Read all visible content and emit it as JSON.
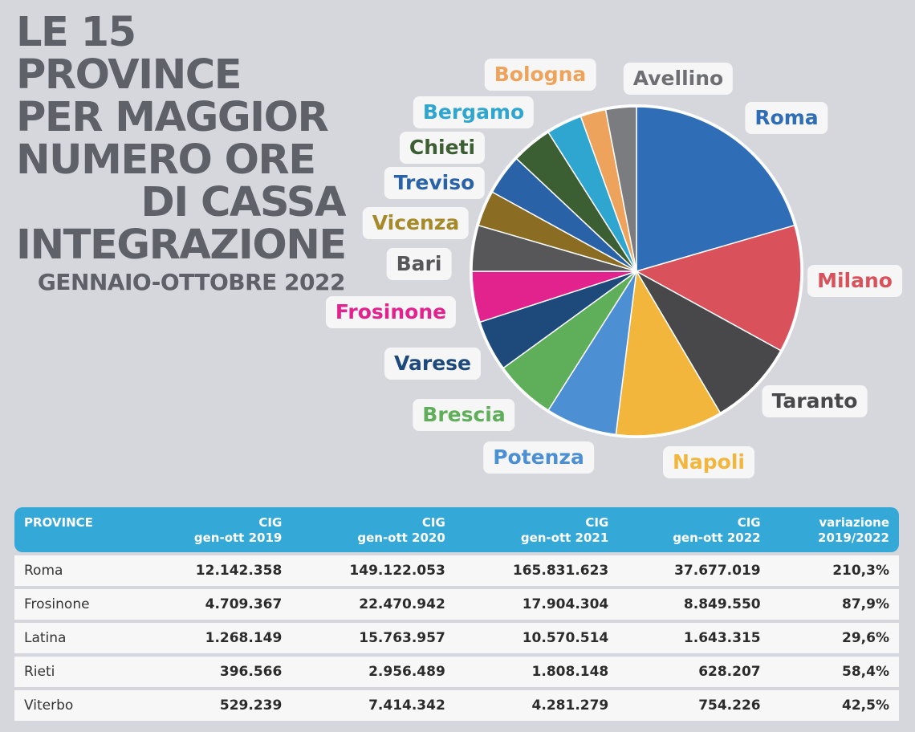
{
  "title": {
    "line1": "LE 15 PROVINCE",
    "line2": "PER MAGGIOR",
    "line3": "NUMERO ORE",
    "line4": "DI CASSA",
    "line5": "INTEGRAZIONE",
    "line6": "GENNAIO-OTTOBRE 2022"
  },
  "chart_data": {
    "type": "pie",
    "title": "LE 15 PROVINCE PER MAGGIOR NUMERO ORE DI CASSA INTEGRAZIONE GENNAIO-OTTOBRE 2022",
    "slices": [
      {
        "label": "Roma",
        "value": 20.5,
        "color": "#2f6db6"
      },
      {
        "label": "Milano",
        "value": 12.5,
        "color": "#d9525b"
      },
      {
        "label": "Taranto",
        "value": 8.5,
        "color": "#48484b"
      },
      {
        "label": "Napoli",
        "value": 10.5,
        "color": "#f2b63d"
      },
      {
        "label": "Potenza",
        "value": 7.0,
        "color": "#4d8fd3"
      },
      {
        "label": "Brescia",
        "value": 6.0,
        "color": "#5fae5a"
      },
      {
        "label": "Varese",
        "value": 5.0,
        "color": "#1d4a7a"
      },
      {
        "label": "Frosinone",
        "value": 5.0,
        "color": "#e3238d"
      },
      {
        "label": "Bari",
        "value": 4.5,
        "color": "#57575a"
      },
      {
        "label": "Vicenza",
        "value": 3.5,
        "color": "#8a6d22"
      },
      {
        "label": "Treviso",
        "value": 4.0,
        "color": "#2a62a8"
      },
      {
        "label": "Chieti",
        "value": 4.0,
        "color": "#3c5e33"
      },
      {
        "label": "Bergamo",
        "value": 3.5,
        "color": "#2fa6cf"
      },
      {
        "label": "Bologna",
        "value": 2.5,
        "color": "#eea35c"
      },
      {
        "label": "Avellino",
        "value": 3.0,
        "color": "#7b7c80"
      }
    ],
    "label_colors": {
      "Roma": "#2f6db6",
      "Milano": "#d9525b",
      "Taranto": "#48484b",
      "Napoli": "#f2b63d",
      "Potenza": "#4d8fd3",
      "Brescia": "#5fae5a",
      "Varese": "#1d4a7a",
      "Frosinone": "#e3238d",
      "Bari": "#57575a",
      "Vicenza": "#a68a2a",
      "Treviso": "#2a62a8",
      "Chieti": "#3c5e33",
      "Bergamo": "#2fa6cf",
      "Bologna": "#eea35c",
      "Avellino": "#6e6f73"
    }
  },
  "table": {
    "headers": [
      {
        "line1": "PROVINCE",
        "line2": ""
      },
      {
        "line1": "CIG",
        "line2": "gen-ott 2019"
      },
      {
        "line1": "CIG",
        "line2": "gen-ott 2020"
      },
      {
        "line1": "CIG",
        "line2": "gen-ott 2021"
      },
      {
        "line1": "CIG",
        "line2": "gen-ott 2022"
      },
      {
        "line1": "variazione",
        "line2": "2019/2022"
      }
    ],
    "rows": [
      [
        "Roma",
        "12.142.358",
        "149.122.053",
        "165.831.623",
        "37.677.019",
        "210,3%"
      ],
      [
        "Frosinone",
        "4.709.367",
        "22.470.942",
        "17.904.304",
        "8.849.550",
        "87,9%"
      ],
      [
        "Latina",
        "1.268.149",
        "15.763.957",
        "10.570.514",
        "1.643.315",
        "29,6%"
      ],
      [
        "Rieti",
        "396.566",
        "2.956.489",
        "1.808.148",
        "628.207",
        "58,4%"
      ],
      [
        "Viterbo",
        "529.239",
        "7.414.342",
        "4.281.279",
        "754.226",
        "42,5%"
      ]
    ]
  }
}
